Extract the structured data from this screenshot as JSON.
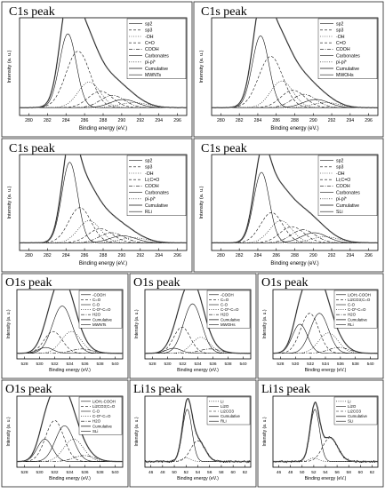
{
  "chart_data": [
    {
      "type": "line",
      "title": "C1s peak",
      "xlabel": "Binding energy (eV.)",
      "ylabel": "Intensity (a. u.)",
      "xlim": [
        279,
        297
      ],
      "x_ticks": [
        "280",
        "282",
        "284",
        "286",
        "288",
        "290",
        "292",
        "294",
        "296"
      ],
      "legend_position": "top-right",
      "series": [
        {
          "name": "sp2",
          "style": "solid",
          "center": 284.2,
          "width": 0.9,
          "height": 0.72
        },
        {
          "name": "sp3",
          "style": "dash",
          "center": 285.3,
          "width": 1.3,
          "height": 0.55
        },
        {
          "name": "-OH",
          "style": "dot",
          "center": 286.5,
          "width": 1.2,
          "height": 0.25
        },
        {
          "name": "C=O",
          "style": "dash",
          "center": 287.7,
          "width": 1.3,
          "height": 0.16
        },
        {
          "name": "COOH",
          "style": "dashdot",
          "center": 289.0,
          "width": 1.3,
          "height": 0.12
        },
        {
          "name": "Carbonates",
          "style": "solid",
          "center": 290.2,
          "width": 1.4,
          "height": 0.08
        },
        {
          "name": "pi-pi*",
          "style": "dot",
          "center": 291.3,
          "width": 1.5,
          "height": 0.05
        },
        {
          "name": "Cumulative",
          "style": "cumulative"
        },
        {
          "name": "MWNTs",
          "style": "data"
        }
      ]
    },
    {
      "type": "line",
      "title": "C1s peak",
      "xlabel": "Binding energy (eV.)",
      "ylabel": "Intensity (a. u.)",
      "xlim": [
        279,
        297
      ],
      "x_ticks": [
        "280",
        "282",
        "284",
        "286",
        "288",
        "290",
        "292",
        "294",
        "296"
      ],
      "legend_position": "top-right",
      "series": [
        {
          "name": "sp2",
          "style": "solid",
          "center": 284.3,
          "width": 0.9,
          "height": 0.7
        },
        {
          "name": "sp3",
          "style": "dash",
          "center": 285.4,
          "width": 1.3,
          "height": 0.5
        },
        {
          "name": "-OH",
          "style": "dot",
          "center": 286.6,
          "width": 1.2,
          "height": 0.26
        },
        {
          "name": "C=O",
          "style": "dash",
          "center": 287.8,
          "width": 1.3,
          "height": 0.17
        },
        {
          "name": "COOH",
          "style": "dashdot",
          "center": 289.0,
          "width": 1.3,
          "height": 0.13
        },
        {
          "name": "Carbonates",
          "style": "solid",
          "center": 290.3,
          "width": 1.4,
          "height": 0.08
        },
        {
          "name": "pi-pi*",
          "style": "dot",
          "center": 291.4,
          "width": 1.5,
          "height": 0.05
        },
        {
          "name": "Cumulative",
          "style": "cumulative"
        },
        {
          "name": "MWOHs",
          "style": "data"
        }
      ]
    },
    {
      "type": "line",
      "title": "C1s peak",
      "xlabel": "Binding energy (eV.)",
      "ylabel": "Intensity (a. u.)",
      "xlim": [
        279,
        297
      ],
      "x_ticks": [
        "280",
        "282",
        "284",
        "286",
        "288",
        "290",
        "292",
        "294",
        "296"
      ],
      "legend_position": "top-right",
      "series": [
        {
          "name": "sp2",
          "style": "solid",
          "center": 284.4,
          "width": 0.85,
          "height": 0.8
        },
        {
          "name": "sp3",
          "style": "dash",
          "center": 285.5,
          "width": 1.2,
          "height": 0.35
        },
        {
          "name": "-OH",
          "style": "dot",
          "center": 286.5,
          "width": 1.2,
          "height": 0.22
        },
        {
          "name": "Li;C=O",
          "style": "dash",
          "center": 287.7,
          "width": 1.3,
          "height": 0.14
        },
        {
          "name": "COOH",
          "style": "dashdot",
          "center": 288.9,
          "width": 1.3,
          "height": 0.1
        },
        {
          "name": "Carbonates",
          "style": "solid",
          "center": 290.1,
          "width": 1.4,
          "height": 0.07
        },
        {
          "name": "pi-pi*",
          "style": "dot",
          "center": 291.3,
          "width": 1.5,
          "height": 0.05
        },
        {
          "name": "Cumulative",
          "style": "cumulative"
        },
        {
          "name": "RLi",
          "style": "data"
        }
      ]
    },
    {
      "type": "line",
      "title": "C1s peak",
      "xlabel": "Binding energy (eV.)",
      "ylabel": "Intensity (a. u.)",
      "xlim": [
        279,
        297
      ],
      "x_ticks": [
        "280",
        "282",
        "284",
        "286",
        "288",
        "290",
        "292",
        "294",
        "296"
      ],
      "legend_position": "top-right",
      "series": [
        {
          "name": "sp2",
          "style": "solid",
          "center": 284.4,
          "width": 0.85,
          "height": 0.7
        },
        {
          "name": "sp3",
          "style": "dash",
          "center": 285.5,
          "width": 1.2,
          "height": 0.3
        },
        {
          "name": "-OH",
          "style": "dot",
          "center": 286.5,
          "width": 1.2,
          "height": 0.22
        },
        {
          "name": "Li;C=O",
          "style": "dash",
          "center": 287.7,
          "width": 1.3,
          "height": 0.16
        },
        {
          "name": "COOH",
          "style": "dashdot",
          "center": 288.9,
          "width": 1.3,
          "height": 0.13
        },
        {
          "name": "Carbonates",
          "style": "solid",
          "center": 290.1,
          "width": 1.4,
          "height": 0.1
        },
        {
          "name": "pi-pi*",
          "style": "dot",
          "center": 291.3,
          "width": 1.5,
          "height": 0.06
        },
        {
          "name": "Cumulative",
          "style": "cumulative"
        },
        {
          "name": "SLi",
          "style": "data"
        }
      ]
    },
    {
      "type": "line",
      "title": "O1s peak",
      "xlabel": "Binding energy (eV.)",
      "ylabel": "Intensity (a. u.)",
      "xlim": [
        527,
        541
      ],
      "x_ticks": [
        "528",
        "530",
        "532",
        "534",
        "536",
        "538",
        "540"
      ],
      "legend_position": "top-right",
      "series": [
        {
          "name": "-COOH",
          "style": "solid",
          "center": 530.8,
          "width": 1.0,
          "height": 0.08
        },
        {
          "name": "C=O",
          "style": "dash",
          "center": 531.8,
          "width": 1.2,
          "height": 0.3
        },
        {
          "name": "C-O",
          "style": "solid",
          "center": 533.0,
          "width": 1.3,
          "height": 0.65
        },
        {
          "name": "C-O*-C=O",
          "style": "dot",
          "center": 534.2,
          "width": 1.3,
          "height": 0.3
        },
        {
          "name": "H2O",
          "style": "dashdot",
          "center": 535.6,
          "width": 1.4,
          "height": 0.06
        },
        {
          "name": "Cumulative",
          "style": "cumulative"
        },
        {
          "name": "MWNTs",
          "style": "data"
        }
      ]
    },
    {
      "type": "line",
      "title": "O1s peak",
      "xlabel": "Binding energy (eV.)",
      "ylabel": "Intensity (a. u.)",
      "xlim": [
        527,
        541
      ],
      "x_ticks": [
        "528",
        "530",
        "532",
        "534",
        "536",
        "538",
        "540"
      ],
      "legend_position": "top-right",
      "series": [
        {
          "name": "-COOH",
          "style": "solid",
          "center": 530.8,
          "width": 1.0,
          "height": 0.07
        },
        {
          "name": "C=O",
          "style": "dash",
          "center": 531.9,
          "width": 1.1,
          "height": 0.36
        },
        {
          "name": "C-O",
          "style": "solid",
          "center": 533.3,
          "width": 1.2,
          "height": 0.68
        },
        {
          "name": "C-O*-C=O",
          "style": "dot",
          "center": 534.4,
          "width": 1.2,
          "height": 0.22
        },
        {
          "name": "H2O",
          "style": "dashdot",
          "center": 535.6,
          "width": 1.4,
          "height": 0.06
        },
        {
          "name": "Cumulative",
          "style": "cumulative"
        },
        {
          "name": "MWOHs",
          "style": "data"
        }
      ]
    },
    {
      "type": "line",
      "title": "O1s peak",
      "xlabel": "Binding energy (eV.)",
      "ylabel": "Intensity (a. u.)",
      "xlim": [
        527,
        541
      ],
      "x_ticks": [
        "528",
        "530",
        "532",
        "534",
        "536",
        "538",
        "540"
      ],
      "legend_position": "top-right",
      "series": [
        {
          "name": "LiOH;-COOH",
          "style": "solid",
          "center": 530.6,
          "width": 1.0,
          "height": 0.4
        },
        {
          "name": "Li2CO3;C=O",
          "style": "dash",
          "center": 531.9,
          "width": 1.2,
          "height": 0.55
        },
        {
          "name": "C-O",
          "style": "solid",
          "center": 533.2,
          "width": 1.2,
          "height": 0.55
        },
        {
          "name": "C-O*-C=O",
          "style": "dot",
          "center": 534.4,
          "width": 1.3,
          "height": 0.28
        },
        {
          "name": "H2O",
          "style": "dashdot",
          "center": 535.8,
          "width": 1.4,
          "height": 0.08
        },
        {
          "name": "Cumulative",
          "style": "cumulative"
        },
        {
          "name": "RLi",
          "style": "data"
        }
      ]
    },
    {
      "type": "line",
      "title": "O1s peak",
      "xlabel": "Binding energy (eV.)",
      "ylabel": "Intensity (a. u.)",
      "xlim": [
        527,
        541
      ],
      "x_ticks": [
        "528",
        "530",
        "532",
        "534",
        "536",
        "538",
        "540"
      ],
      "legend_position": "top-right",
      "series": [
        {
          "name": "LiOH;-COOH",
          "style": "solid",
          "center": 530.7,
          "width": 1.0,
          "height": 0.3
        },
        {
          "name": "Li2CO3;C=O",
          "style": "dash",
          "center": 532.0,
          "width": 1.2,
          "height": 0.55
        },
        {
          "name": "C-O",
          "style": "solid",
          "center": 533.3,
          "width": 1.2,
          "height": 0.48
        },
        {
          "name": "C-O*-C=O",
          "style": "dot",
          "center": 534.5,
          "width": 1.3,
          "height": 0.3
        },
        {
          "name": "H2O",
          "style": "dashdot",
          "center": 535.9,
          "width": 1.4,
          "height": 0.08
        },
        {
          "name": "Cumulative",
          "style": "cumulative"
        },
        {
          "name": "SLi",
          "style": "data"
        }
      ]
    },
    {
      "type": "line",
      "title": "Li1s peak",
      "xlabel": "Binding energy (eV.)",
      "ylabel": "Intensity (a. u.)",
      "xlim": [
        45,
        63
      ],
      "x_ticks": [
        "46",
        "48",
        "50",
        "52",
        "54",
        "56",
        "58",
        "60",
        "62"
      ],
      "legend_position": "top-right",
      "series": [
        {
          "name": "Li",
          "style": "dot",
          "center": 52.0,
          "width": 0.8,
          "height": 0.05
        },
        {
          "name": "Li2O",
          "style": "solid",
          "center": 52.2,
          "width": 0.8,
          "height": 0.7
        },
        {
          "name": "Li2CO3",
          "style": "dash",
          "center": 54.0,
          "width": 1.2,
          "height": 0.28
        },
        {
          "name": "Cumulative",
          "style": "cumulative"
        },
        {
          "name": "RLi",
          "style": "data"
        }
      ]
    },
    {
      "type": "line",
      "title": "Li1s peak",
      "xlabel": "Binding energy (eV.)",
      "ylabel": "Intensity (a. u.)",
      "xlim": [
        45,
        63
      ],
      "x_ticks": [
        "46",
        "48",
        "50",
        "52",
        "54",
        "56",
        "58",
        "60",
        "62"
      ],
      "legend_position": "top-right",
      "series": [
        {
          "name": "Li",
          "style": "dot",
          "center": 52.0,
          "width": 0.8,
          "height": 0.05
        },
        {
          "name": "Li2O",
          "style": "solid",
          "center": 52.2,
          "width": 0.8,
          "height": 0.7
        },
        {
          "name": "Li2CO3",
          "style": "dash",
          "center": 54.8,
          "width": 1.3,
          "height": 0.32
        },
        {
          "name": "Cumulative",
          "style": "cumulative"
        },
        {
          "name": "SLi",
          "style": "data"
        }
      ]
    }
  ]
}
